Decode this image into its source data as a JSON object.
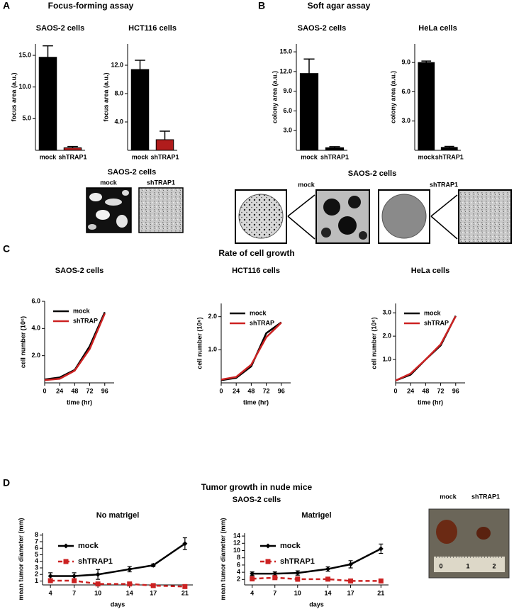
{
  "figure": {
    "panels": [
      {
        "letter": "A",
        "title": "Focus-forming assay"
      },
      {
        "letter": "B",
        "title": "Soft agar assay"
      },
      {
        "letter": "C",
        "title": "Rate of cell growth"
      },
      {
        "letter": "D",
        "title": "Tumor growth in nude mice",
        "subtitle": "SAOS-2 cells"
      }
    ],
    "images": {
      "a": {
        "caption": "SAOS-2 cells",
        "labels": [
          "mock",
          "shTRAP1"
        ]
      },
      "b": {
        "caption": "SAOS-2 cells",
        "labels": [
          "mock",
          "shTRAP1"
        ]
      },
      "d": {
        "labels": [
          "mock",
          "shTRAP1"
        ],
        "ruler": [
          "0",
          "1",
          "2"
        ]
      }
    }
  },
  "chart_data": [
    {
      "type": "bar",
      "title": "SAOS-2 cells",
      "ylabel": "focus area (a.u.)",
      "categories": [
        "mock",
        "shTRAP1"
      ],
      "values": [
        14.7,
        0.4
      ],
      "errors": [
        1.8,
        0.2
      ],
      "colors": [
        "#000000",
        "#b01c1c"
      ],
      "ylim": [
        0,
        16.8
      ],
      "yticks": [
        {
          "value": 5,
          "label": "5.0"
        },
        {
          "value": 10,
          "label": "10.0"
        },
        {
          "value": 15,
          "label": "15.0"
        }
      ]
    },
    {
      "type": "bar",
      "title": "HCT116 cells",
      "ylabel": "focus area (a.u.)",
      "categories": [
        "mock",
        "shTRAP1"
      ],
      "values": [
        11.4,
        1.5
      ],
      "errors": [
        1.3,
        1.2
      ],
      "colors": [
        "#000000",
        "#b01c1c"
      ],
      "ylim": [
        0,
        15
      ],
      "yticks": [
        {
          "value": 4,
          "label": "4.0"
        },
        {
          "value": 8,
          "label": "8.0"
        },
        {
          "value": 12,
          "label": "12.0"
        }
      ]
    },
    {
      "type": "bar",
      "title": "SAOS-2 cells",
      "ylabel": "colony area (a.u.)",
      "categories": [
        "mock",
        "shTRAP1"
      ],
      "values": [
        11.7,
        0.4
      ],
      "errors": [
        2.2,
        0.15
      ],
      "colors": [
        "#000000",
        "#000000"
      ],
      "ylim": [
        0,
        16.2
      ],
      "yticks": [
        {
          "value": 3,
          "label": "3.0"
        },
        {
          "value": 6,
          "label": "6.0"
        },
        {
          "value": 9,
          "label": "9.0"
        },
        {
          "value": 12,
          "label": "12.0"
        },
        {
          "value": 15,
          "label": "15.0"
        }
      ]
    },
    {
      "type": "bar",
      "title": "HeLa cells",
      "ylabel": "colony area (a.u.)",
      "categories": [
        "mock",
        "shTRAP1"
      ],
      "values": [
        9.0,
        0.3
      ],
      "errors": [
        0.15,
        0.1
      ],
      "colors": [
        "#000000",
        "#000000"
      ],
      "ylim": [
        0,
        10.9
      ],
      "yticks": [
        {
          "value": 3,
          "label": "3.0"
        },
        {
          "value": 6,
          "label": "6.0"
        },
        {
          "value": 9,
          "label": "9.0"
        }
      ]
    },
    {
      "type": "line",
      "title": "SAOS-2 cells",
      "ylabel": "cell number (10⁶)",
      "xlabel": "time (hr)",
      "x": [
        0,
        24,
        48,
        72,
        96
      ],
      "xlim": [
        0,
        111
      ],
      "xticks": [
        0,
        24,
        48,
        72,
        96
      ],
      "ylim": [
        0,
        6
      ],
      "yticks": [
        {
          "value": 2,
          "label": "2.0"
        },
        {
          "value": 4,
          "label": "4.0"
        },
        {
          "value": 6,
          "label": "6.0"
        }
      ],
      "legend": "upper left",
      "series": [
        {
          "name": "mock",
          "color": "#000000",
          "values": [
            0.25,
            0.4,
            0.95,
            2.7,
            5.2
          ]
        },
        {
          "name": "shTRAP",
          "color": "#cc2222",
          "values": [
            0.2,
            0.3,
            0.9,
            2.5,
            5.1
          ]
        }
      ]
    },
    {
      "type": "line",
      "title": "HCT116 cells",
      "ylabel": "cell number (10⁶)",
      "xlabel": "time (hr)",
      "x": [
        0,
        24,
        48,
        72,
        96
      ],
      "xlim": [
        0,
        111
      ],
      "xticks": [
        0,
        24,
        48,
        72,
        96
      ],
      "ylim": [
        0,
        2.4
      ],
      "yticks": [
        {
          "value": 1,
          "label": "1.0"
        },
        {
          "value": 2,
          "label": "2.0"
        }
      ],
      "legend": "upper left",
      "series": [
        {
          "name": "mock",
          "color": "#000000",
          "values": [
            0.08,
            0.15,
            0.5,
            1.5,
            1.83
          ]
        },
        {
          "name": "shTRAP",
          "color": "#cc2222",
          "values": [
            0.1,
            0.18,
            0.55,
            1.38,
            1.82
          ]
        }
      ]
    },
    {
      "type": "line",
      "title": "HeLa cells",
      "ylabel": "cell number (10⁶)",
      "xlabel": "time (hr)",
      "x": [
        0,
        24,
        48,
        72,
        96
      ],
      "xlim": [
        0,
        111
      ],
      "xticks": [
        0,
        24,
        48,
        72,
        96
      ],
      "ylim": [
        0,
        3.4
      ],
      "yticks": [
        {
          "value": 1,
          "label": "1.0"
        },
        {
          "value": 2,
          "label": "2.0"
        },
        {
          "value": 3,
          "label": "3.0"
        }
      ],
      "legend": "upper left",
      "series": [
        {
          "name": "mock",
          "color": "#000000",
          "values": [
            0.1,
            0.35,
            1.0,
            1.6,
            2.87
          ]
        },
        {
          "name": "shTRAP",
          "color": "#cc2222",
          "values": [
            0.1,
            0.4,
            1.0,
            1.65,
            2.85
          ]
        }
      ]
    },
    {
      "type": "line",
      "title": "No matrigel",
      "ylabel": "mean tumor diameter (mm)",
      "xlabel": "days",
      "x": [
        4,
        7,
        10,
        14,
        17,
        21
      ],
      "xlim": [
        3,
        22
      ],
      "xticks": [
        4,
        7,
        10,
        14,
        17,
        21
      ],
      "ylim": [
        0.4,
        8.3
      ],
      "yticks": [
        1,
        2,
        3,
        4,
        5,
        6,
        7,
        8
      ],
      "legend": "upper left",
      "series": [
        {
          "name": "mock",
          "color": "#000000",
          "line_style": "solid",
          "marker": "diamond",
          "values": [
            1.75,
            1.75,
            2.0,
            2.8,
            3.4,
            6.7
          ],
          "errors": [
            0.5,
            0.5,
            0.75,
            0.4,
            0.2,
            0.9
          ]
        },
        {
          "name": "shTRAP1",
          "color": "#cc2222",
          "line_style": "dashed",
          "marker": "square",
          "values": [
            1.05,
            1.05,
            0.55,
            0.55,
            0.3,
            0.15
          ],
          "errors": [
            0.1,
            0.1,
            0.1,
            0.1,
            0.1,
            0.05
          ]
        }
      ]
    },
    {
      "type": "line",
      "title": "Matrigel",
      "ylabel": "mean tumor diameter (mm)",
      "xlabel": "days",
      "x": [
        4,
        7,
        10,
        14,
        17,
        21
      ],
      "xlim": [
        3,
        22
      ],
      "xticks": [
        4,
        7,
        10,
        14,
        17,
        21
      ],
      "ylim": [
        0.5,
        14.8
      ],
      "yticks": [
        2,
        4,
        6,
        8,
        10,
        12,
        14
      ],
      "legend": "upper left",
      "series": [
        {
          "name": "mock",
          "color": "#000000",
          "line_style": "solid",
          "marker": "diamond",
          "values": [
            3.6,
            3.6,
            3.8,
            4.9,
            6.2,
            10.5
          ],
          "errors": [
            0.5,
            0.5,
            0.6,
            0.6,
            1.0,
            1.3
          ]
        },
        {
          "name": "shTRAP1",
          "color": "#cc2222",
          "line_style": "dashed",
          "marker": "square",
          "values": [
            2.2,
            2.5,
            2.1,
            2.1,
            1.6,
            1.6
          ],
          "errors": [
            0.6,
            0.4,
            0.6,
            0.3,
            0.3,
            0.5
          ]
        }
      ]
    }
  ]
}
